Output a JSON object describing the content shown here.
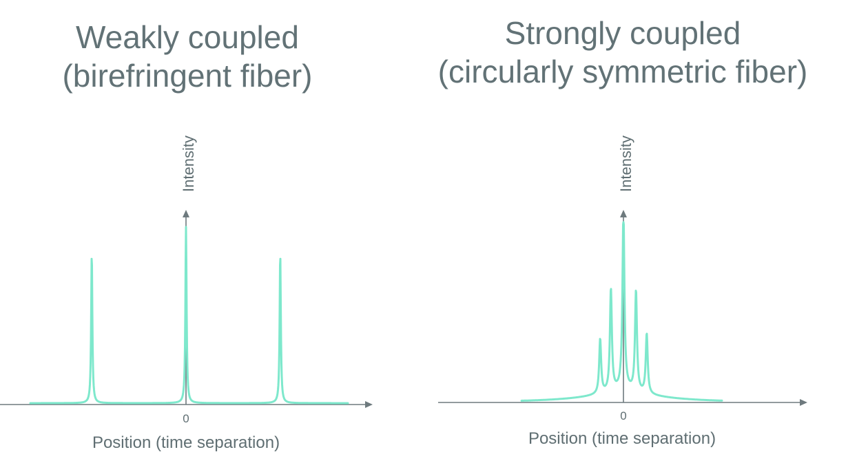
{
  "colors": {
    "series": "#7ee8cc",
    "axis": "#6e7a7e",
    "text": "#627276"
  },
  "chart_data": [
    {
      "type": "line",
      "title": "Weakly coupled\n(birefringent fiber)",
      "xlabel": "Position (time separation)",
      "ylabel": "Intensity",
      "x_tick_labels": [
        {
          "x": 0,
          "label": "0"
        }
      ],
      "xlim": [
        -1.0,
        1.0
      ],
      "ylim": [
        0,
        1.0
      ],
      "grid": false,
      "legend": "none",
      "series": [
        {
          "peaks": [
            {
              "x": -0.6,
              "height": 0.85
            },
            {
              "x": 0.0,
              "height": 1.0
            },
            {
              "x": 0.6,
              "height": 0.85
            }
          ]
        }
      ]
    },
    {
      "type": "line",
      "title": "Strongly coupled\n(circularly symmetric fiber)",
      "xlabel": "Position (time separation)",
      "ylabel": "Intensity",
      "x_tick_labels": [
        {
          "x": 0,
          "label": "0"
        }
      ],
      "xlim": [
        -1.0,
        1.0
      ],
      "ylim": [
        0,
        1.0
      ],
      "grid": false,
      "legend": "none",
      "series": [
        {
          "peaks": [
            {
              "x": -0.13,
              "height": 0.31
            },
            {
              "x": -0.07,
              "height": 0.58
            },
            {
              "x": 0.0,
              "height": 1.0
            },
            {
              "x": 0.07,
              "height": 0.57
            },
            {
              "x": 0.13,
              "height": 0.34
            }
          ]
        }
      ]
    }
  ]
}
